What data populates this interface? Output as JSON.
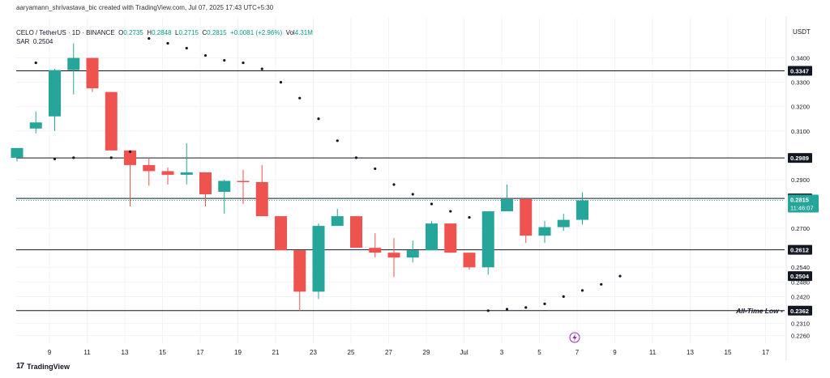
{
  "header": {
    "credit": "aaryamann_shrivastava_bic created with TradingView.com, Jul 07, 2025 17:43 UTC+5:30",
    "symbol": "CELO / TetherUS · 1D · BINANCE",
    "o_label": "O",
    "o_value": "0.2735",
    "h_label": "H",
    "h_value": "0.2848",
    "l_label": "L",
    "l_value": "0.2715",
    "c_label": "C",
    "c_value": "0.2815",
    "change": "+0.0081 (+2.96%)",
    "vol_label": "Vol",
    "vol_value": "4.31M",
    "sar_label": "SAR",
    "sar_value": "0.2504",
    "currency": "USDT"
  },
  "footer": {
    "brand": "TradingView",
    "brand_mark": "17"
  },
  "colors": {
    "up": "#26a69a",
    "down": "#ef5350",
    "line": "#131722",
    "grid": "#f0f3fa",
    "sar": "#131722",
    "price_tag": "#26a69a"
  },
  "chart_data": {
    "type": "candlestick",
    "ylim": [
      0.2225,
      0.3465
    ],
    "x_ticks": [
      "9",
      "11",
      "13",
      "15",
      "17",
      "19",
      "21",
      "23",
      "25",
      "27",
      "29",
      "Jul",
      "3",
      "5",
      "7",
      "9",
      "11",
      "13",
      "15",
      "17"
    ],
    "y_ticks": [
      "0.3400",
      "0.3300",
      "0.3200",
      "0.3100",
      "0.2900",
      "0.2700",
      "0.2540",
      "0.2480",
      "0.2420",
      "0.2310",
      "0.2260"
    ],
    "candles": [
      {
        "o": 0.299,
        "h": 0.303,
        "l": 0.2975,
        "c": 0.303
      },
      {
        "o": 0.311,
        "h": 0.318,
        "l": 0.309,
        "c": 0.3135
      },
      {
        "o": 0.316,
        "h": 0.3355,
        "l": 0.31,
        "c": 0.335
      },
      {
        "o": 0.335,
        "h": 0.346,
        "l": 0.325,
        "c": 0.34
      },
      {
        "o": 0.34,
        "h": 0.34,
        "l": 0.326,
        "c": 0.3275
      },
      {
        "o": 0.326,
        "h": 0.326,
        "l": 0.302,
        "c": 0.302
      },
      {
        "o": 0.302,
        "h": 0.302,
        "l": 0.279,
        "c": 0.296
      },
      {
        "o": 0.296,
        "h": 0.299,
        "l": 0.2875,
        "c": 0.2935
      },
      {
        "o": 0.2935,
        "h": 0.295,
        "l": 0.288,
        "c": 0.292
      },
      {
        "o": 0.292,
        "h": 0.305,
        "l": 0.288,
        "c": 0.293
      },
      {
        "o": 0.293,
        "h": 0.293,
        "l": 0.279,
        "c": 0.284
      },
      {
        "o": 0.285,
        "h": 0.29,
        "l": 0.276,
        "c": 0.2895
      },
      {
        "o": 0.2895,
        "h": 0.294,
        "l": 0.28,
        "c": 0.289
      },
      {
        "o": 0.289,
        "h": 0.296,
        "l": 0.275,
        "c": 0.275
      },
      {
        "o": 0.275,
        "h": 0.275,
        "l": 0.261,
        "c": 0.261
      },
      {
        "o": 0.261,
        "h": 0.261,
        "l": 0.236,
        "c": 0.244
      },
      {
        "o": 0.244,
        "h": 0.272,
        "l": 0.241,
        "c": 0.271
      },
      {
        "o": 0.271,
        "h": 0.278,
        "l": 0.271,
        "c": 0.275
      },
      {
        "o": 0.275,
        "h": 0.275,
        "l": 0.262,
        "c": 0.262
      },
      {
        "o": 0.262,
        "h": 0.268,
        "l": 0.258,
        "c": 0.26
      },
      {
        "o": 0.26,
        "h": 0.266,
        "l": 0.25,
        "c": 0.258
      },
      {
        "o": 0.258,
        "h": 0.265,
        "l": 0.256,
        "c": 0.261
      },
      {
        "o": 0.261,
        "h": 0.273,
        "l": 0.261,
        "c": 0.272
      },
      {
        "o": 0.272,
        "h": 0.272,
        "l": 0.26,
        "c": 0.26
      },
      {
        "o": 0.26,
        "h": 0.26,
        "l": 0.253,
        "c": 0.254
      },
      {
        "o": 0.254,
        "h": 0.277,
        "l": 0.251,
        "c": 0.277
      },
      {
        "o": 0.277,
        "h": 0.288,
        "l": 0.277,
        "c": 0.282
      },
      {
        "o": 0.282,
        "h": 0.282,
        "l": 0.264,
        "c": 0.267
      },
      {
        "o": 0.267,
        "h": 0.273,
        "l": 0.264,
        "c": 0.2705
      },
      {
        "o": 0.2705,
        "h": 0.276,
        "l": 0.269,
        "c": 0.2735
      },
      {
        "o": 0.2735,
        "h": 0.2848,
        "l": 0.2715,
        "c": 0.2815
      }
    ],
    "sar": [
      {
        "i": 1,
        "v": 0.338
      },
      {
        "i": 2,
        "v": 0.2985
      },
      {
        "i": 3,
        "v": 0.299
      },
      {
        "i": 5,
        "v": 0.299
      },
      {
        "i": 6,
        "v": 0.3015
      },
      {
        "i": 7,
        "v": 0.348
      },
      {
        "i": 8,
        "v": 0.346
      },
      {
        "i": 9,
        "v": 0.344
      },
      {
        "i": 10,
        "v": 0.341
      },
      {
        "i": 11,
        "v": 0.339
      },
      {
        "i": 12,
        "v": 0.338
      },
      {
        "i": 13,
        "v": 0.3355
      },
      {
        "i": 14,
        "v": 0.33
      },
      {
        "i": 15,
        "v": 0.3235
      },
      {
        "i": 16,
        "v": 0.315
      },
      {
        "i": 17,
        "v": 0.306
      },
      {
        "i": 18,
        "v": 0.299
      },
      {
        "i": 19,
        "v": 0.2945
      },
      {
        "i": 20,
        "v": 0.288
      },
      {
        "i": 21,
        "v": 0.284
      },
      {
        "i": 22,
        "v": 0.28
      },
      {
        "i": 23,
        "v": 0.277
      },
      {
        "i": 24,
        "v": 0.2745
      },
      {
        "i": 25,
        "v": 0.2362
      },
      {
        "i": 26,
        "v": 0.2368
      },
      {
        "i": 27,
        "v": 0.2375
      },
      {
        "i": 28,
        "v": 0.239
      },
      {
        "i": 29,
        "v": 0.242
      },
      {
        "i": 30,
        "v": 0.2445
      },
      {
        "i": 31,
        "v": 0.247
      },
      {
        "i": 32,
        "v": 0.2504
      }
    ],
    "levels": [
      {
        "value": 0.3347,
        "label": "0.3347"
      },
      {
        "value": 0.2989,
        "label": "0.2989"
      },
      {
        "value": 0.2823,
        "label": "0.2823"
      },
      {
        "value": 0.2612,
        "label": "0.2612"
      },
      {
        "value": 0.2362,
        "label": "0.2362",
        "annotation": "All-Time Low"
      }
    ],
    "sar_tag": {
      "value": 0.2504,
      "label": "0.2504"
    },
    "last_price": {
      "value": 0.2815,
      "label": "0.2815",
      "countdown": "11:46:07"
    },
    "grid": true
  }
}
